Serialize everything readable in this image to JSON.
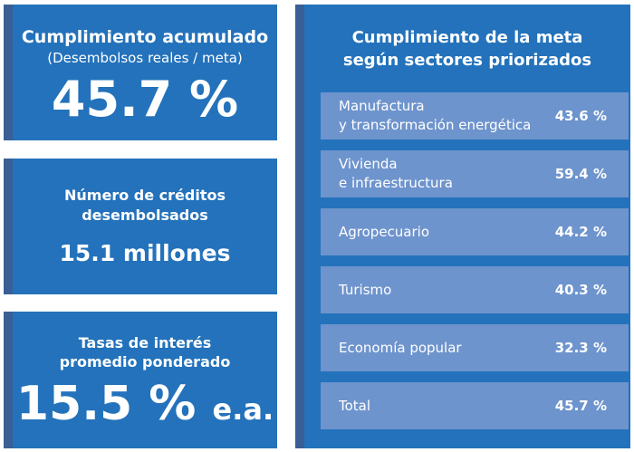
{
  "acumulado": {
    "title": "Cumplimiento acumulado",
    "subtitle": "(Desembolsos reales / meta)",
    "value": "45.7 %"
  },
  "creditos": {
    "title_line1": "Número de créditos",
    "title_line2": "desembolsados",
    "value": "15.1 millones"
  },
  "tasas": {
    "title_line1": "Tasas de interés",
    "title_line2": "promedio ponderado",
    "value": "15.5 %",
    "unit": "e.a."
  },
  "sectores": {
    "title_line1": "Cumplimiento de la meta",
    "title_line2": "según sectores priorizados",
    "rows": [
      {
        "label_line1": "Manufactura",
        "label_line2": "y transformación energética",
        "value": "43.6 %"
      },
      {
        "label_line1": "Vivienda",
        "label_line2": "e infraestructura",
        "value": "59.4 %"
      },
      {
        "label_line1": "Agropecuario",
        "label_line2": "",
        "value": "44.2 %"
      },
      {
        "label_line1": "Turismo",
        "label_line2": "",
        "value": "40.3 %"
      },
      {
        "label_line1": "Economía popular",
        "label_line2": "",
        "value": "32.3 %"
      },
      {
        "label_line1": "Total",
        "label_line2": "",
        "value": "45.7 %"
      }
    ]
  },
  "colors": {
    "card_bg": "#2372bb",
    "card_accent": "#3a5f96",
    "row_bg": "#6e94cd",
    "text": "#ffffff"
  }
}
